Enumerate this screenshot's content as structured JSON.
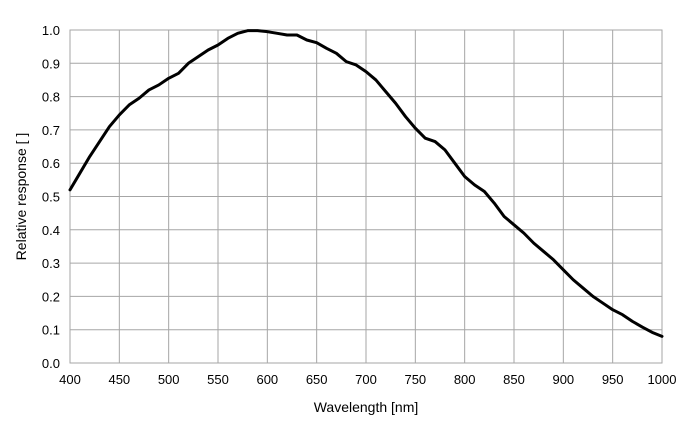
{
  "chart_data": {
    "type": "line",
    "title": "",
    "xlabel": "Wavelength [nm]",
    "ylabel": "Relative response [ ]",
    "xlim": [
      400,
      1000
    ],
    "ylim": [
      0.0,
      1.0
    ],
    "x_ticks": [
      "400",
      "450",
      "500",
      "550",
      "600",
      "650",
      "700",
      "750",
      "800",
      "850",
      "900",
      "950",
      "1000"
    ],
    "y_ticks": [
      "0.0",
      "0.1",
      "0.2",
      "0.3",
      "0.4",
      "0.5",
      "0.6",
      "0.7",
      "0.8",
      "0.9",
      "1.0"
    ],
    "grid": true,
    "legend": "none",
    "series": [
      {
        "color": "#000000",
        "x": [
          400,
          410,
          420,
          430,
          440,
          450,
          460,
          470,
          480,
          490,
          500,
          510,
          520,
          530,
          540,
          550,
          560,
          570,
          580,
          590,
          600,
          610,
          620,
          630,
          640,
          650,
          660,
          670,
          680,
          690,
          700,
          710,
          720,
          730,
          740,
          750,
          760,
          770,
          780,
          790,
          800,
          810,
          820,
          830,
          840,
          850,
          860,
          870,
          880,
          890,
          900,
          910,
          920,
          930,
          940,
          950,
          960,
          970,
          980,
          990,
          1000
        ],
        "y": [
          0.52,
          0.57,
          0.62,
          0.665,
          0.71,
          0.745,
          0.775,
          0.795,
          0.82,
          0.835,
          0.855,
          0.87,
          0.9,
          0.92,
          0.94,
          0.955,
          0.975,
          0.99,
          0.998,
          0.998,
          0.995,
          0.99,
          0.985,
          0.985,
          0.97,
          0.962,
          0.945,
          0.93,
          0.905,
          0.895,
          0.875,
          0.85,
          0.815,
          0.78,
          0.74,
          0.705,
          0.675,
          0.665,
          0.64,
          0.6,
          0.56,
          0.535,
          0.515,
          0.48,
          0.44,
          0.415,
          0.39,
          0.36,
          0.335,
          0.31,
          0.28,
          0.25,
          0.225,
          0.2,
          0.18,
          0.16,
          0.145,
          0.125,
          0.108,
          0.092,
          0.08
        ]
      }
    ]
  }
}
